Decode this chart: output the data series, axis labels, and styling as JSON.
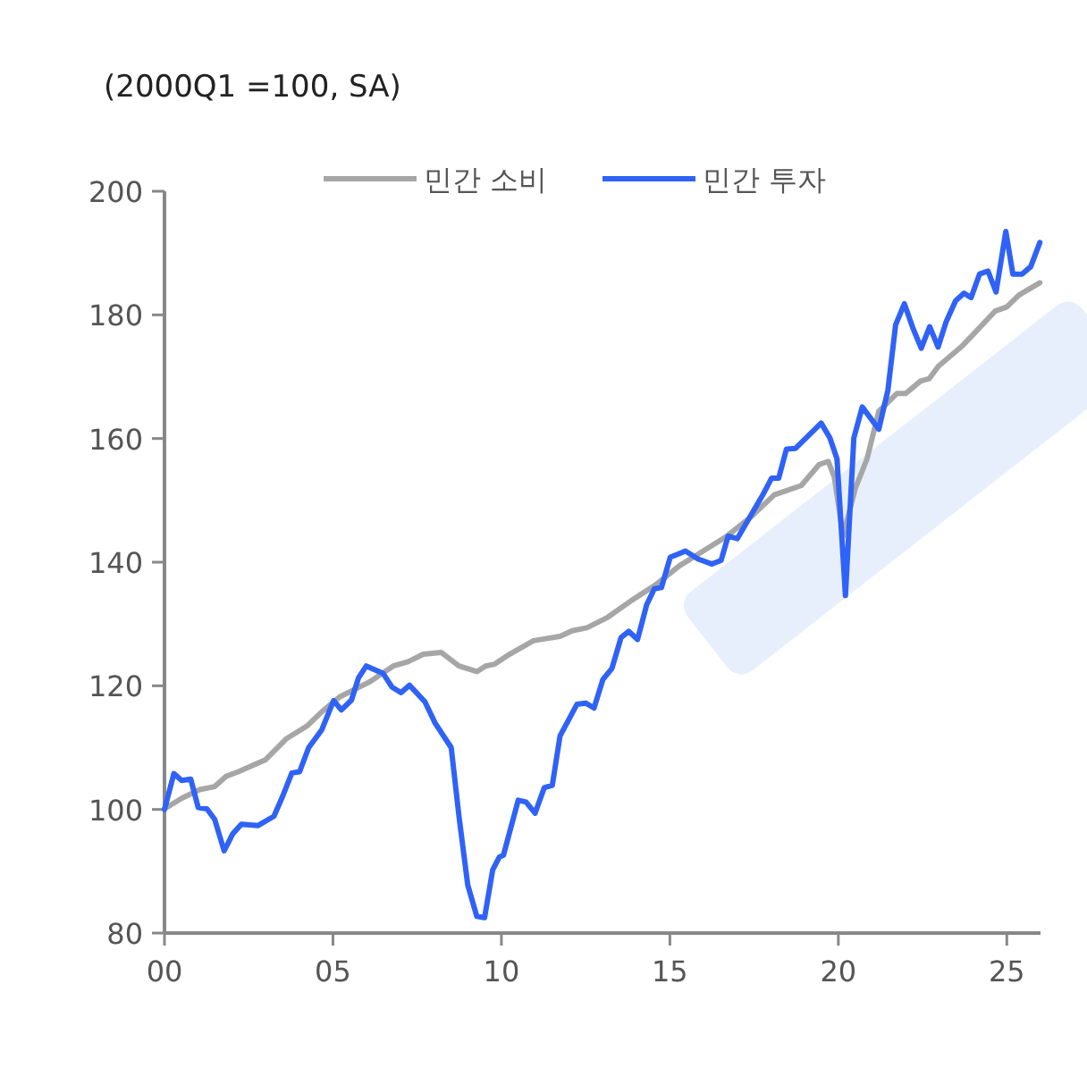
{
  "chart_data": {
    "type": "line",
    "title": "(2000Q1 =100, SA)",
    "xlim": [
      0,
      26
    ],
    "xticks": [
      {
        "value": 0,
        "label": "00"
      },
      {
        "value": 5,
        "label": "05"
      },
      {
        "value": 10,
        "label": "10"
      },
      {
        "value": 15,
        "label": "15"
      },
      {
        "value": 20,
        "label": "20"
      },
      {
        "value": 25,
        "label": "25"
      }
    ],
    "ylim": [
      80,
      200
    ],
    "yticks": [
      80,
      100,
      120,
      140,
      160,
      180,
      200
    ],
    "legend": "top",
    "grid": false,
    "marker": "none",
    "line_style": "solid",
    "series": [
      {
        "name": "민간 소비",
        "color": "#a6a6a6",
        "x": [
          0,
          0.51,
          1.04,
          1.49,
          1.84,
          2.19,
          2.99,
          3.61,
          4.23,
          4.67,
          5.2,
          6.08,
          6.79,
          7.23,
          7.68,
          8.21,
          8.74,
          9.27,
          9.53,
          9.8,
          10.24,
          10.95,
          11.74,
          12.1,
          12.54,
          13.16,
          13.86,
          14.57,
          15.28,
          15.99,
          16.69,
          17.4,
          18.1,
          18.9,
          19.43,
          19.7,
          19.88,
          20.14,
          20.5,
          20.85,
          21.2,
          21.74,
          22.0,
          22.44,
          22.7,
          22.97,
          23.68,
          24.03,
          24.65,
          25.0,
          25.36,
          25.98
        ],
        "values": [
          100.1,
          101.8,
          103.2,
          103.7,
          105.4,
          106.1,
          108.0,
          111.4,
          113.5,
          115.8,
          118.2,
          120.6,
          123.2,
          123.9,
          125.1,
          125.4,
          123.2,
          122.3,
          123.2,
          123.5,
          125.1,
          127.3,
          128.0,
          128.9,
          129.4,
          131.1,
          133.8,
          136.3,
          139.4,
          141.8,
          144.2,
          147.3,
          150.9,
          152.4,
          155.8,
          156.3,
          153.8,
          144.2,
          151.9,
          156.7,
          164.4,
          167.3,
          167.3,
          169.3,
          169.7,
          171.7,
          175.0,
          177.0,
          180.6,
          181.3,
          183.2,
          185.2
        ]
      },
      {
        "name": "민간 투자",
        "color": "#2f62f6",
        "x": [
          0,
          0.28,
          0.51,
          0.78,
          1.0,
          1.26,
          1.49,
          1.77,
          2.02,
          2.28,
          2.78,
          3.25,
          3.52,
          3.78,
          4.01,
          4.28,
          4.67,
          5.02,
          5.25,
          5.55,
          5.76,
          5.99,
          6.49,
          6.75,
          7.02,
          7.27,
          7.73,
          8.03,
          8.51,
          8.74,
          9.0,
          9.27,
          9.5,
          9.74,
          9.94,
          10.06,
          10.5,
          10.73,
          11.0,
          11.27,
          11.51,
          11.74,
          12.24,
          12.5,
          12.75,
          13.01,
          13.28,
          13.55,
          13.78,
          14.04,
          14.31,
          14.54,
          14.75,
          15.01,
          15.46,
          15.84,
          16.25,
          16.52,
          16.73,
          17.0,
          17.76,
          18.02,
          18.23,
          18.46,
          18.73,
          19.49,
          19.75,
          19.96,
          20.21,
          20.46,
          20.71,
          21.2,
          21.47,
          21.7,
          21.96,
          22.21,
          22.46,
          22.71,
          22.96,
          23.2,
          23.48,
          23.73,
          23.94,
          24.19,
          24.44,
          24.68,
          24.97,
          25.18,
          25.45,
          25.71,
          25.98
        ],
        "values": [
          100,
          105.8,
          104.7,
          104.9,
          100.3,
          100.1,
          98.4,
          93.3,
          96.0,
          97.6,
          97.4,
          98.9,
          102.3,
          105.9,
          106.1,
          110.0,
          112.9,
          117.6,
          116.1,
          117.7,
          121.3,
          123.2,
          122.0,
          119.8,
          118.9,
          120.1,
          117.4,
          114.0,
          110.0,
          98.9,
          87.8,
          82.7,
          82.5,
          90.2,
          92.3,
          92.6,
          101.5,
          101.2,
          99.4,
          103.5,
          103.9,
          111.9,
          117.0,
          117.2,
          116.4,
          121.0,
          122.8,
          127.8,
          128.8,
          127.5,
          133.1,
          135.7,
          135.9,
          140.8,
          141.8,
          140.5,
          139.7,
          140.3,
          144.2,
          143.8,
          150.9,
          153.6,
          153.6,
          158.3,
          158.4,
          162.5,
          160.1,
          156.7,
          134.6,
          160.1,
          165.1,
          161.5,
          167.8,
          178.4,
          181.8,
          177.9,
          174.6,
          178.1,
          174.8,
          178.9,
          182.3,
          183.5,
          182.8,
          186.6,
          187.1,
          183.7,
          193.5,
          186.6,
          186.6,
          187.8,
          191.7
        ]
      }
    ]
  }
}
